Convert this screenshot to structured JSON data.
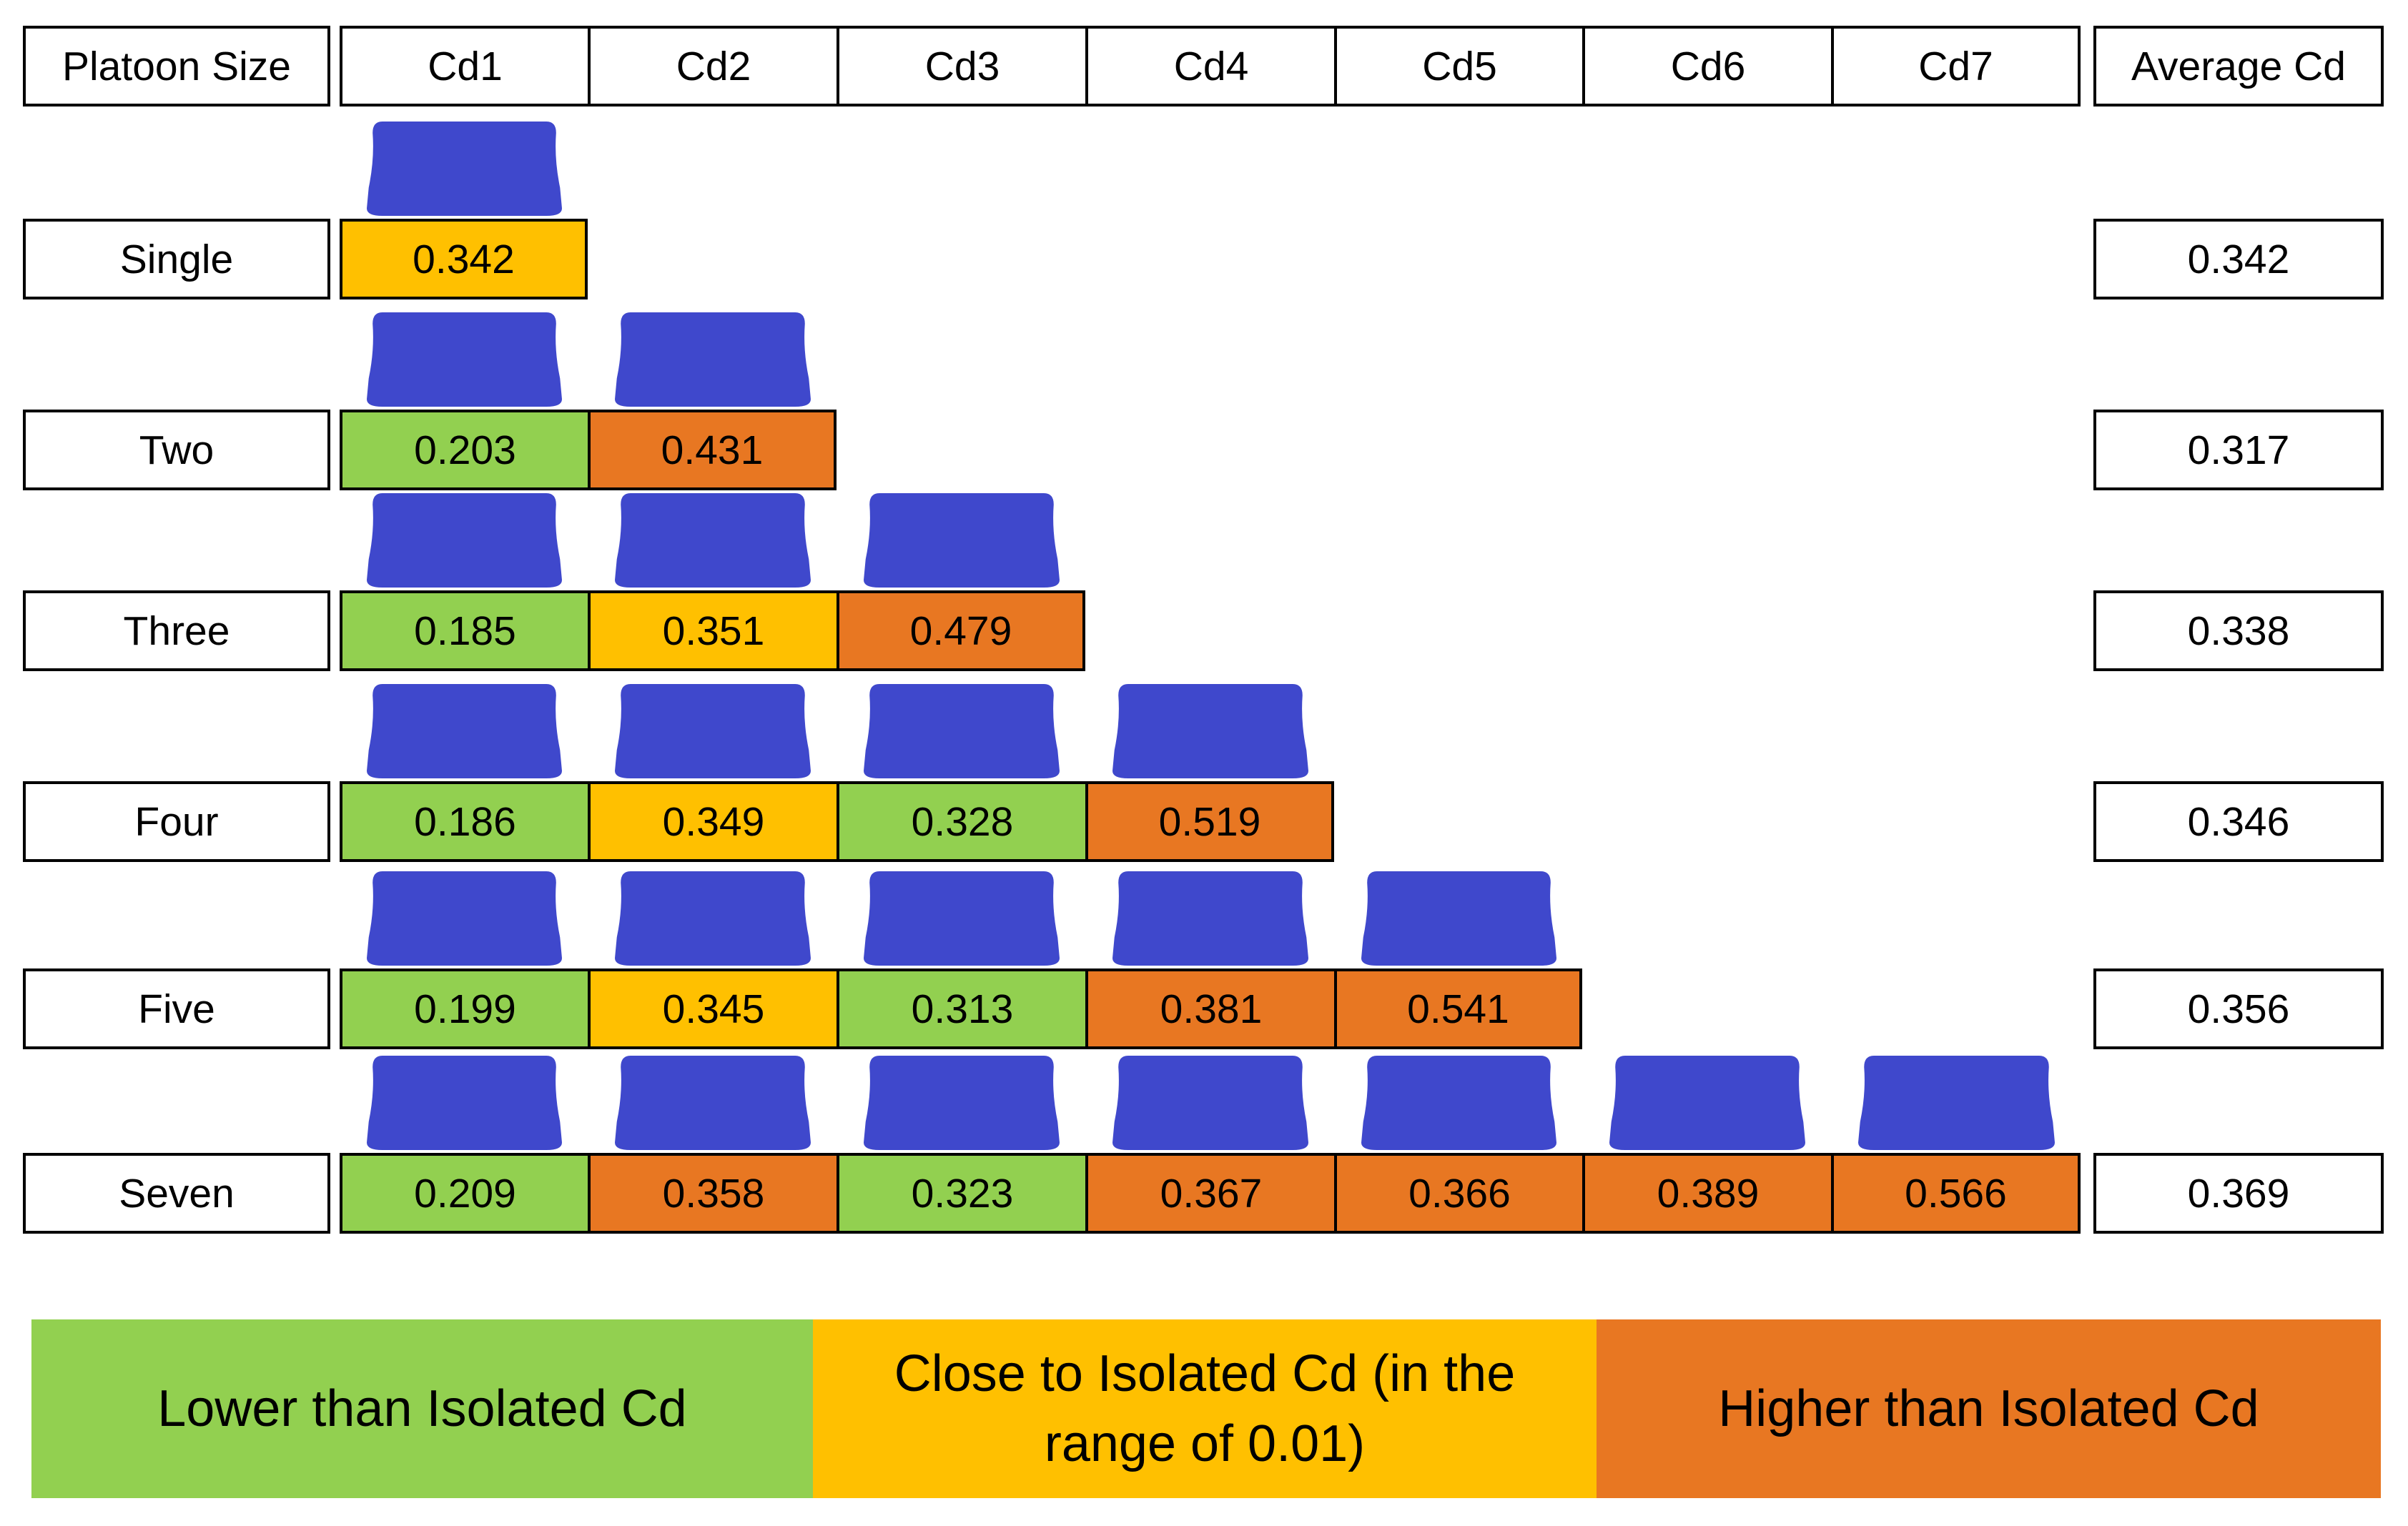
{
  "headers": {
    "label": "Platoon Size",
    "columns": [
      "Cd1",
      "Cd2",
      "Cd3",
      "Cd4",
      "Cd5",
      "Cd6",
      "Cd7"
    ],
    "average": "Average Cd"
  },
  "rows": [
    {
      "label": "Single",
      "values": [
        "0.342"
      ],
      "status": [
        "close"
      ],
      "average": "0.342"
    },
    {
      "label": "Two",
      "values": [
        "0.203",
        "0.431"
      ],
      "status": [
        "lower",
        "higher"
      ],
      "average": "0.317"
    },
    {
      "label": "Three",
      "values": [
        "0.185",
        "0.351",
        "0.479"
      ],
      "status": [
        "lower",
        "close",
        "higher"
      ],
      "average": "0.338"
    },
    {
      "label": "Four",
      "values": [
        "0.186",
        "0.349",
        "0.328",
        "0.519"
      ],
      "status": [
        "lower",
        "close",
        "lower",
        "higher"
      ],
      "average": "0.346"
    },
    {
      "label": "Five",
      "values": [
        "0.199",
        "0.345",
        "0.313",
        "0.381",
        "0.541"
      ],
      "status": [
        "lower",
        "close",
        "lower",
        "higher",
        "higher"
      ],
      "average": "0.356"
    },
    {
      "label": "Seven",
      "values": [
        "0.209",
        "0.358",
        "0.323",
        "0.367",
        "0.366",
        "0.389",
        "0.566"
      ],
      "status": [
        "lower",
        "higher",
        "lower",
        "higher",
        "higher",
        "higher",
        "higher"
      ],
      "average": "0.369"
    }
  ],
  "legend": [
    {
      "key": "lower",
      "text": "Lower than Isolated Cd"
    },
    {
      "key": "close",
      "text": "Close to Isolated Cd (in the range of 0.01)"
    },
    {
      "key": "higher",
      "text": "Higher than Isolated Cd"
    }
  ],
  "colors": {
    "lower": "#92D050",
    "close": "#FFC000",
    "higher": "#E87722",
    "vehicle": "#3F48CC",
    "border": "#000000"
  },
  "icons": {
    "vehicle": "vehicle-icon"
  }
}
